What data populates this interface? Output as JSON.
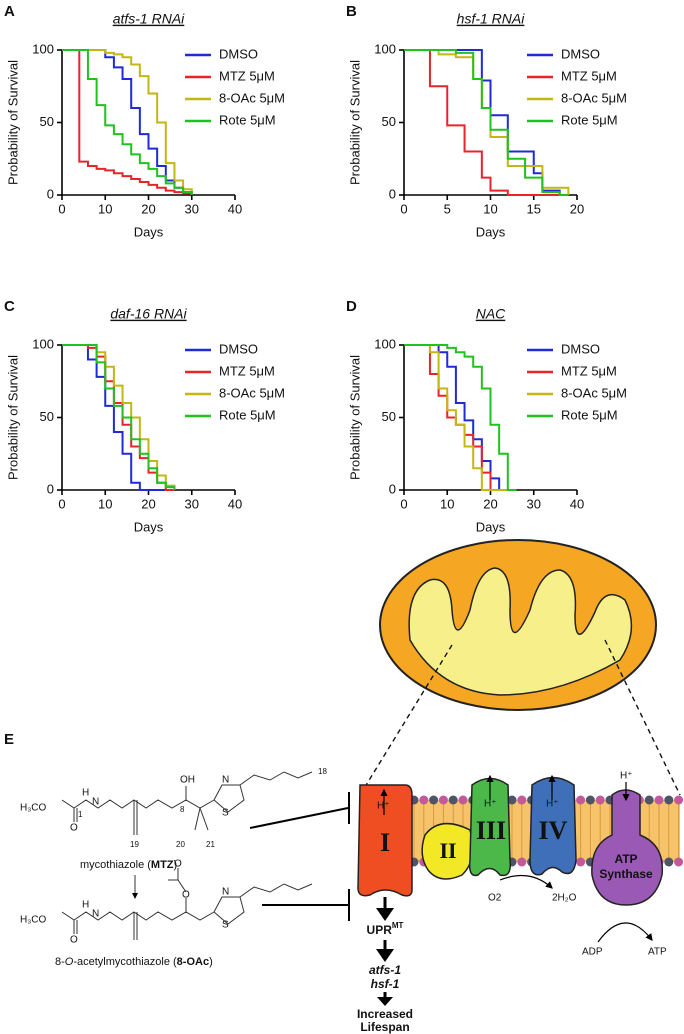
{
  "chart_data": [
    {
      "type": "step",
      "panel": "A",
      "title": "atfs-1 RNAi",
      "ylabel": "Probability of Survival",
      "xlabel": "Days",
      "xlim": [
        0,
        40
      ],
      "ylim": [
        0,
        100
      ],
      "xticks": [
        0,
        10,
        20,
        30,
        40
      ],
      "yticks": [
        0,
        50,
        100
      ],
      "x": [
        0,
        2,
        4,
        6,
        8,
        10,
        12,
        14,
        16,
        18,
        20,
        22,
        24,
        26,
        28,
        30
      ],
      "series": [
        {
          "name": "DMSO",
          "color": "#1f2bd4",
          "values": [
            100,
            100,
            100,
            100,
            100,
            95,
            88,
            80,
            60,
            42,
            32,
            20,
            10,
            5,
            2,
            0
          ]
        },
        {
          "name": "MTZ 5μM",
          "color": "#e8242b",
          "values": [
            100,
            100,
            23,
            20,
            18,
            17,
            15,
            13,
            11,
            9,
            7,
            5,
            3,
            2,
            1,
            0
          ]
        },
        {
          "name": "8-OAc 5μM",
          "color": "#c2b714",
          "values": [
            100,
            100,
            100,
            100,
            100,
            98,
            97,
            95,
            90,
            82,
            70,
            50,
            22,
            10,
            4,
            0
          ]
        },
        {
          "name": "Rote 5μM",
          "color": "#1fc21f",
          "values": [
            100,
            100,
            100,
            80,
            62,
            48,
            42,
            35,
            28,
            22,
            18,
            13,
            8,
            5,
            2,
            0
          ]
        }
      ]
    },
    {
      "type": "step",
      "panel": "B",
      "title": "hsf-1 RNAi",
      "ylabel": "Probability of Survival",
      "xlabel": "Days",
      "xlim": [
        0,
        20
      ],
      "ylim": [
        0,
        100
      ],
      "xticks": [
        0,
        5,
        10,
        15,
        20
      ],
      "yticks": [
        0,
        50,
        100
      ],
      "x": [
        0,
        1,
        2,
        3,
        4,
        5,
        6,
        7,
        8,
        9,
        10,
        11,
        12,
        13,
        14,
        15,
        16,
        17,
        18,
        19
      ],
      "series": [
        {
          "name": "DMSO",
          "color": "#1f2bd4",
          "values": [
            100,
            100,
            100,
            100,
            100,
            100,
            100,
            100,
            100,
            79,
            55,
            55,
            30,
            30,
            30,
            15,
            3,
            3,
            0,
            0
          ]
        },
        {
          "name": "MTZ 5μM",
          "color": "#e8242b",
          "values": [
            100,
            100,
            100,
            75,
            75,
            48,
            48,
            30,
            30,
            12,
            3,
            3,
            0,
            0,
            0,
            0,
            0,
            0,
            0,
            0
          ]
        },
        {
          "name": "8-OAc 5μM",
          "color": "#c2b714",
          "values": [
            100,
            100,
            100,
            100,
            97,
            97,
            95,
            95,
            80,
            60,
            40,
            40,
            20,
            20,
            20,
            20,
            5,
            5,
            5,
            0
          ]
        },
        {
          "name": "Rote 5μM",
          "color": "#1fc21f",
          "values": [
            100,
            100,
            100,
            100,
            100,
            100,
            98,
            98,
            80,
            60,
            45,
            45,
            25,
            25,
            12,
            12,
            2,
            2,
            0,
            0
          ]
        }
      ]
    },
    {
      "type": "step",
      "panel": "C",
      "title": "daf-16 RNAi",
      "ylabel": "Probability of Survival",
      "xlabel": "Days",
      "xlim": [
        0,
        40
      ],
      "ylim": [
        0,
        100
      ],
      "xticks": [
        0,
        10,
        20,
        30,
        40
      ],
      "yticks": [
        0,
        50,
        100
      ],
      "x": [
        0,
        2,
        4,
        6,
        8,
        10,
        12,
        14,
        16,
        18,
        20,
        22,
        24,
        26
      ],
      "series": [
        {
          "name": "DMSO",
          "color": "#1f2bd4",
          "values": [
            100,
            100,
            100,
            90,
            78,
            58,
            40,
            25,
            5,
            0,
            0,
            0,
            0,
            0
          ]
        },
        {
          "name": "MTZ 5μM",
          "color": "#e8242b",
          "values": [
            100,
            100,
            100,
            98,
            92,
            75,
            60,
            45,
            30,
            22,
            12,
            5,
            0,
            0
          ]
        },
        {
          "name": "8-OAc 5μM",
          "color": "#c2b714",
          "values": [
            100,
            100,
            100,
            100,
            95,
            85,
            72,
            60,
            50,
            35,
            20,
            10,
            3,
            0
          ]
        },
        {
          "name": "Rote 5μM",
          "color": "#1fc21f",
          "values": [
            100,
            100,
            100,
            100,
            88,
            70,
            58,
            50,
            35,
            25,
            15,
            5,
            2,
            0
          ]
        }
      ]
    },
    {
      "type": "step",
      "panel": "D",
      "title": "NAC",
      "ylabel": "Probability of Survival",
      "xlabel": "Days",
      "xlim": [
        0,
        40
      ],
      "ylim": [
        0,
        100
      ],
      "xticks": [
        0,
        10,
        20,
        30,
        40
      ],
      "yticks": [
        0,
        50,
        100
      ],
      "x": [
        0,
        2,
        4,
        6,
        8,
        10,
        12,
        14,
        16,
        18,
        20,
        22,
        24,
        26
      ],
      "series": [
        {
          "name": "DMSO",
          "color": "#1f2bd4",
          "values": [
            100,
            100,
            100,
            100,
            95,
            85,
            60,
            48,
            35,
            20,
            8,
            0,
            0,
            0
          ]
        },
        {
          "name": "MTZ 5μM",
          "color": "#e8242b",
          "values": [
            100,
            100,
            100,
            80,
            65,
            50,
            45,
            38,
            30,
            12,
            0,
            0,
            0,
            0
          ]
        },
        {
          "name": "8-OAc 5μM",
          "color": "#c2b714",
          "values": [
            100,
            100,
            100,
            95,
            70,
            55,
            45,
            30,
            15,
            0,
            0,
            0,
            0,
            0
          ]
        },
        {
          "name": "Rote 5μM",
          "color": "#1fc21f",
          "values": [
            100,
            100,
            100,
            100,
            100,
            98,
            95,
            92,
            85,
            70,
            45,
            25,
            0,
            0
          ]
        }
      ]
    }
  ],
  "panel_e": {
    "label": "E",
    "mtz": {
      "h3co": "H₃CO",
      "o": "O",
      "n_amide": "N",
      "h": "H",
      "c1": "1",
      "oh": "OH",
      "c8": "8",
      "n": "N",
      "s": "S",
      "c18": "18",
      "c19": "19",
      "c20": "20",
      "c21": "21",
      "name_a": "mycothiazole (",
      "name_b": "MTZ",
      "name_c": ")"
    },
    "oac": {
      "h3co": "H₃CO",
      "o": "O",
      "n_amide": "N",
      "h": "H",
      "o_ester": "O",
      "o_carbonyl": "O",
      "n": "N",
      "s": "S",
      "name_a": "8-",
      "name_b": "O",
      "name_c": "-acetylmycothiazole (",
      "name_d": "8-OAc",
      "name_e": ")"
    },
    "complexes": [
      "I",
      "II",
      "III",
      "IV"
    ],
    "atp_synthase": [
      "ATP",
      "Synthase"
    ],
    "proton": "H⁺",
    "o2": "O2",
    "water": "2H₂O",
    "adp": "ADP",
    "atp": "ATP",
    "upr": "UPR",
    "upr_sup": "MT",
    "genes": [
      "atfs-1",
      "hsf-1"
    ],
    "outcome": [
      "Increased",
      "Lifespan"
    ]
  }
}
